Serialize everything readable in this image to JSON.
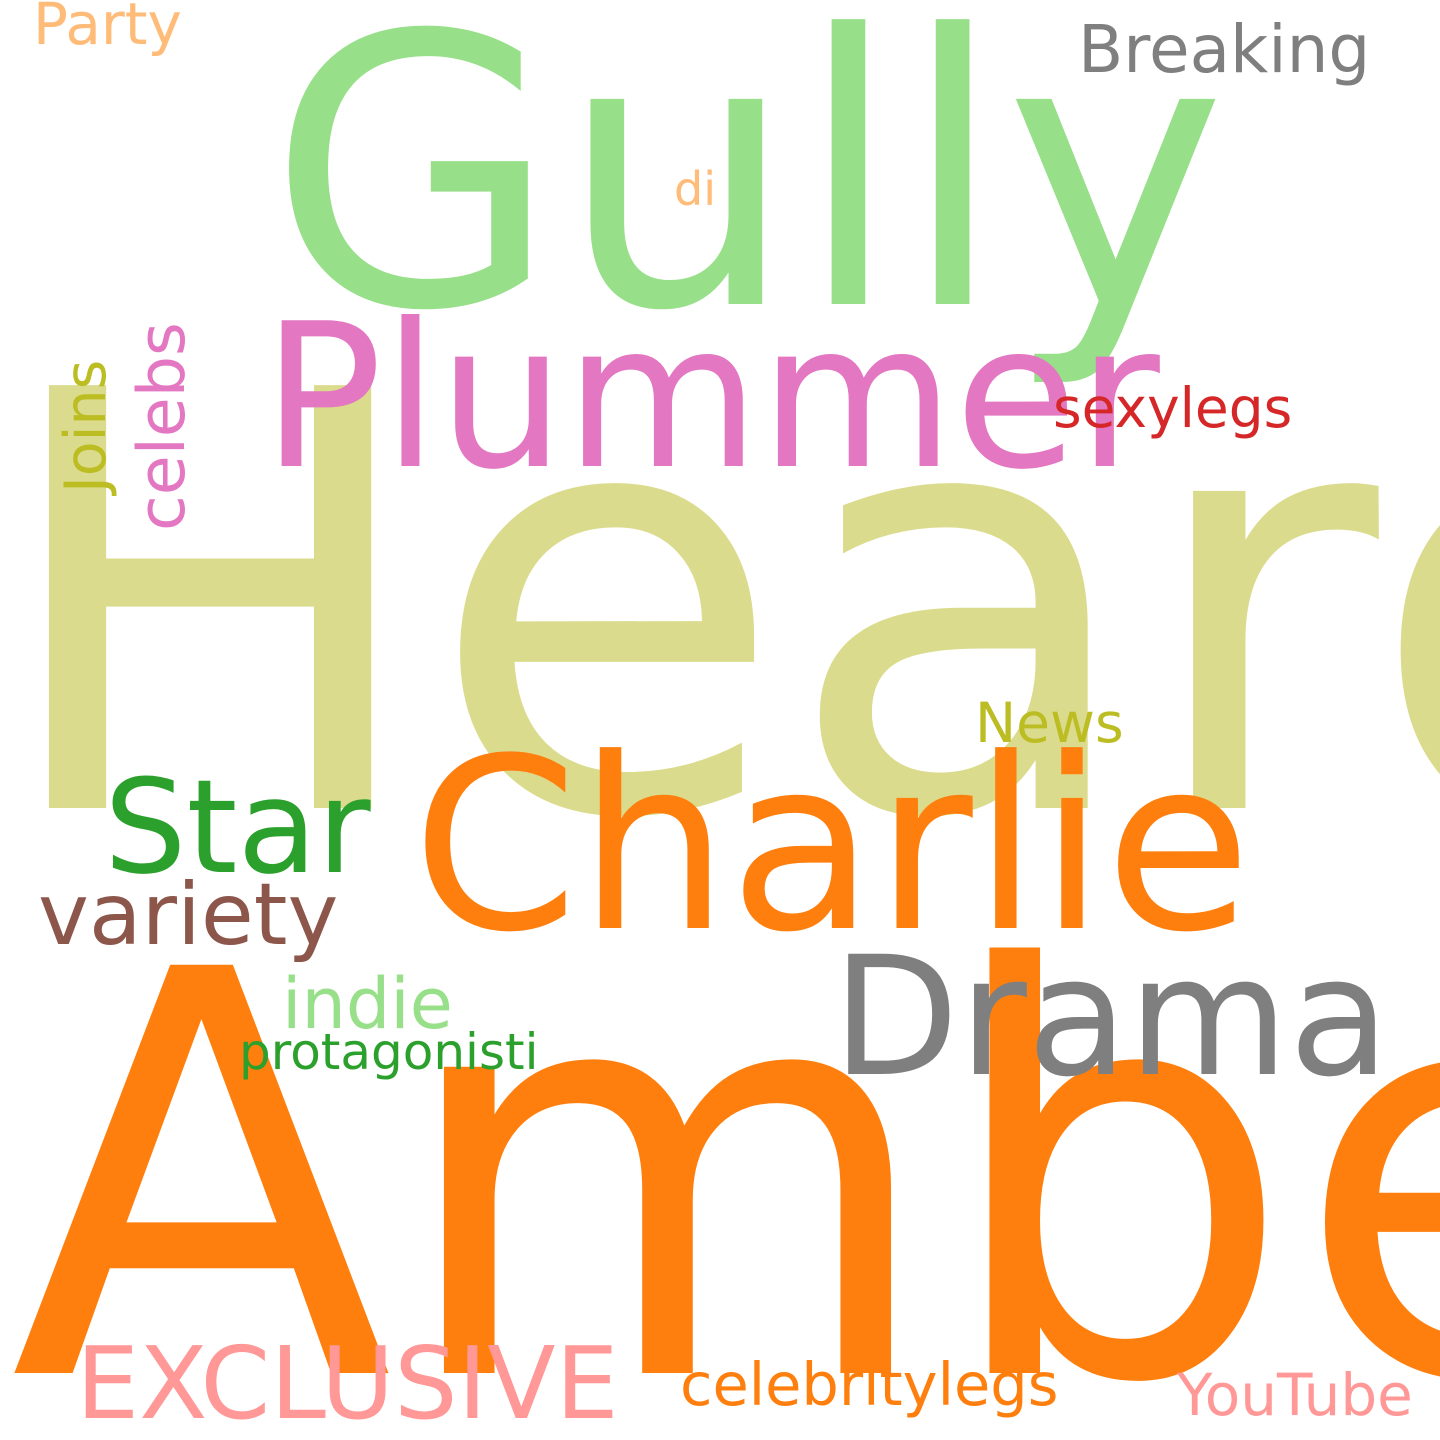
{
  "cloud": {
    "words": {
      "heard": {
        "text": "Heard",
        "color": "#dbdb8d"
      },
      "amber": {
        "text": "Amber",
        "color": "#ff7f0e"
      },
      "gully": {
        "text": "Gully",
        "color": "#98df8a"
      },
      "charlie": {
        "text": "Charlie",
        "color": "#ff7f0e"
      },
      "plummer": {
        "text": "Plummer",
        "color": "#e377c2"
      },
      "drama": {
        "text": "Drama",
        "color": "#7f7f7f"
      },
      "star": {
        "text": "Star",
        "color": "#2ca02c"
      },
      "variety": {
        "text": "variety",
        "color": "#8c564b"
      },
      "exclusive": {
        "text": "EXCLUSIVE",
        "color": "#ff9896"
      },
      "breaking": {
        "text": "Breaking",
        "color": "#7f7f7f"
      },
      "sexylegs": {
        "text": "sexylegs",
        "color": "#d62728"
      },
      "news": {
        "text": "News",
        "color": "#bcbd22"
      },
      "indie": {
        "text": "indie",
        "color": "#98df8a"
      },
      "protagonisti": {
        "text": "protagonisti",
        "color": "#2ca02c"
      },
      "celebritylegs": {
        "text": "celebritylegs",
        "color": "#ff7f0e"
      },
      "youtube": {
        "text": "YouTube",
        "color": "#ff9896"
      },
      "party": {
        "text": "Party",
        "color": "#ffbb78"
      },
      "di": {
        "text": "di",
        "color": "#ffbb78"
      },
      "celebs": {
        "text": "celebs",
        "color": "#e377c2"
      },
      "joins": {
        "text": "Joins",
        "color": "#bcbd22"
      }
    }
  }
}
